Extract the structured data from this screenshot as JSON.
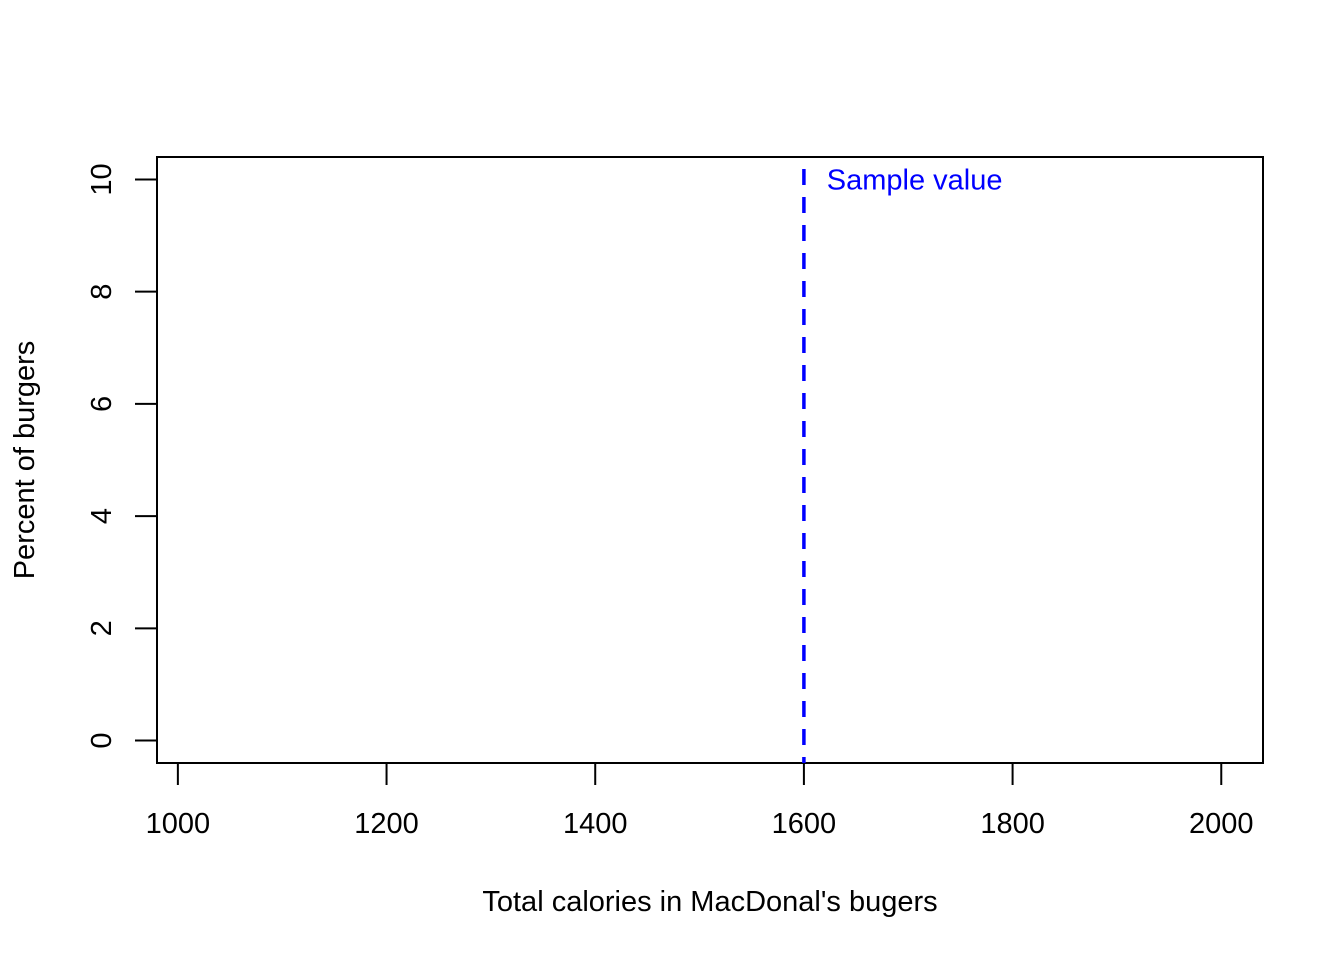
{
  "chart_data": {
    "type": "line",
    "title": "",
    "xlabel": "Total calories in MacDonal's bugers",
    "ylabel": "Percent of burgers",
    "xlim": [
      980,
      2040
    ],
    "ylim": [
      -0.4,
      10.4
    ],
    "x_ticks": [
      1000,
      1200,
      1400,
      1600,
      1800,
      2000
    ],
    "y_ticks": [
      0,
      2,
      4,
      6,
      8,
      10
    ],
    "grid": false,
    "series": [],
    "reference_lines": [
      {
        "orientation": "vertical",
        "x": 1600,
        "style": "dashed",
        "color": "#0000ff"
      }
    ],
    "annotations": [
      {
        "text": "Sample value",
        "x": 1620,
        "y": 10,
        "color": "#0000ff"
      }
    ]
  }
}
